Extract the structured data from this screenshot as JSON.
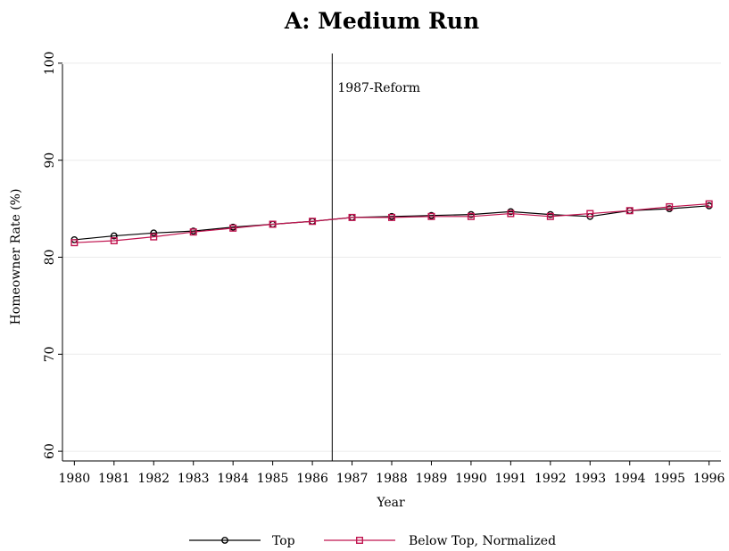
{
  "chart_data": {
    "type": "line",
    "title": "A: Medium Run",
    "xlabel": "Year",
    "ylabel": "Homeowner Rate (%)",
    "x": [
      1980,
      1981,
      1982,
      1983,
      1984,
      1985,
      1986,
      1987,
      1988,
      1989,
      1990,
      1991,
      1992,
      1993,
      1994,
      1995,
      1996
    ],
    "xticks": [
      "1980",
      "1981",
      "1982",
      "1983",
      "1984",
      "1985",
      "1986",
      "1987",
      "1988",
      "1989",
      "1990",
      "1991",
      "1992",
      "1993",
      "1994",
      "1995",
      "1996"
    ],
    "xlim": [
      1979.7,
      1996.3
    ],
    "ylim": [
      59,
      101
    ],
    "yticks": [
      60,
      70,
      80,
      90,
      100
    ],
    "grid": true,
    "legend_position": "bottom",
    "annotation": {
      "text": "1987-Reform",
      "x": 1986.5
    },
    "series": [
      {
        "name": "Top",
        "color": "#000000",
        "marker": "circle",
        "values": [
          81.8,
          82.2,
          82.5,
          82.7,
          83.1,
          83.4,
          83.7,
          84.1,
          84.2,
          84.3,
          84.4,
          84.7,
          84.4,
          84.2,
          84.8,
          85.0,
          85.3
        ]
      },
      {
        "name": "Below Top, Normalized",
        "color": "#c0144f",
        "marker": "square",
        "values": [
          81.5,
          81.7,
          82.1,
          82.6,
          83.0,
          83.4,
          83.7,
          84.1,
          84.1,
          84.2,
          84.2,
          84.5,
          84.2,
          84.5,
          84.8,
          85.2,
          85.5
        ]
      }
    ]
  }
}
